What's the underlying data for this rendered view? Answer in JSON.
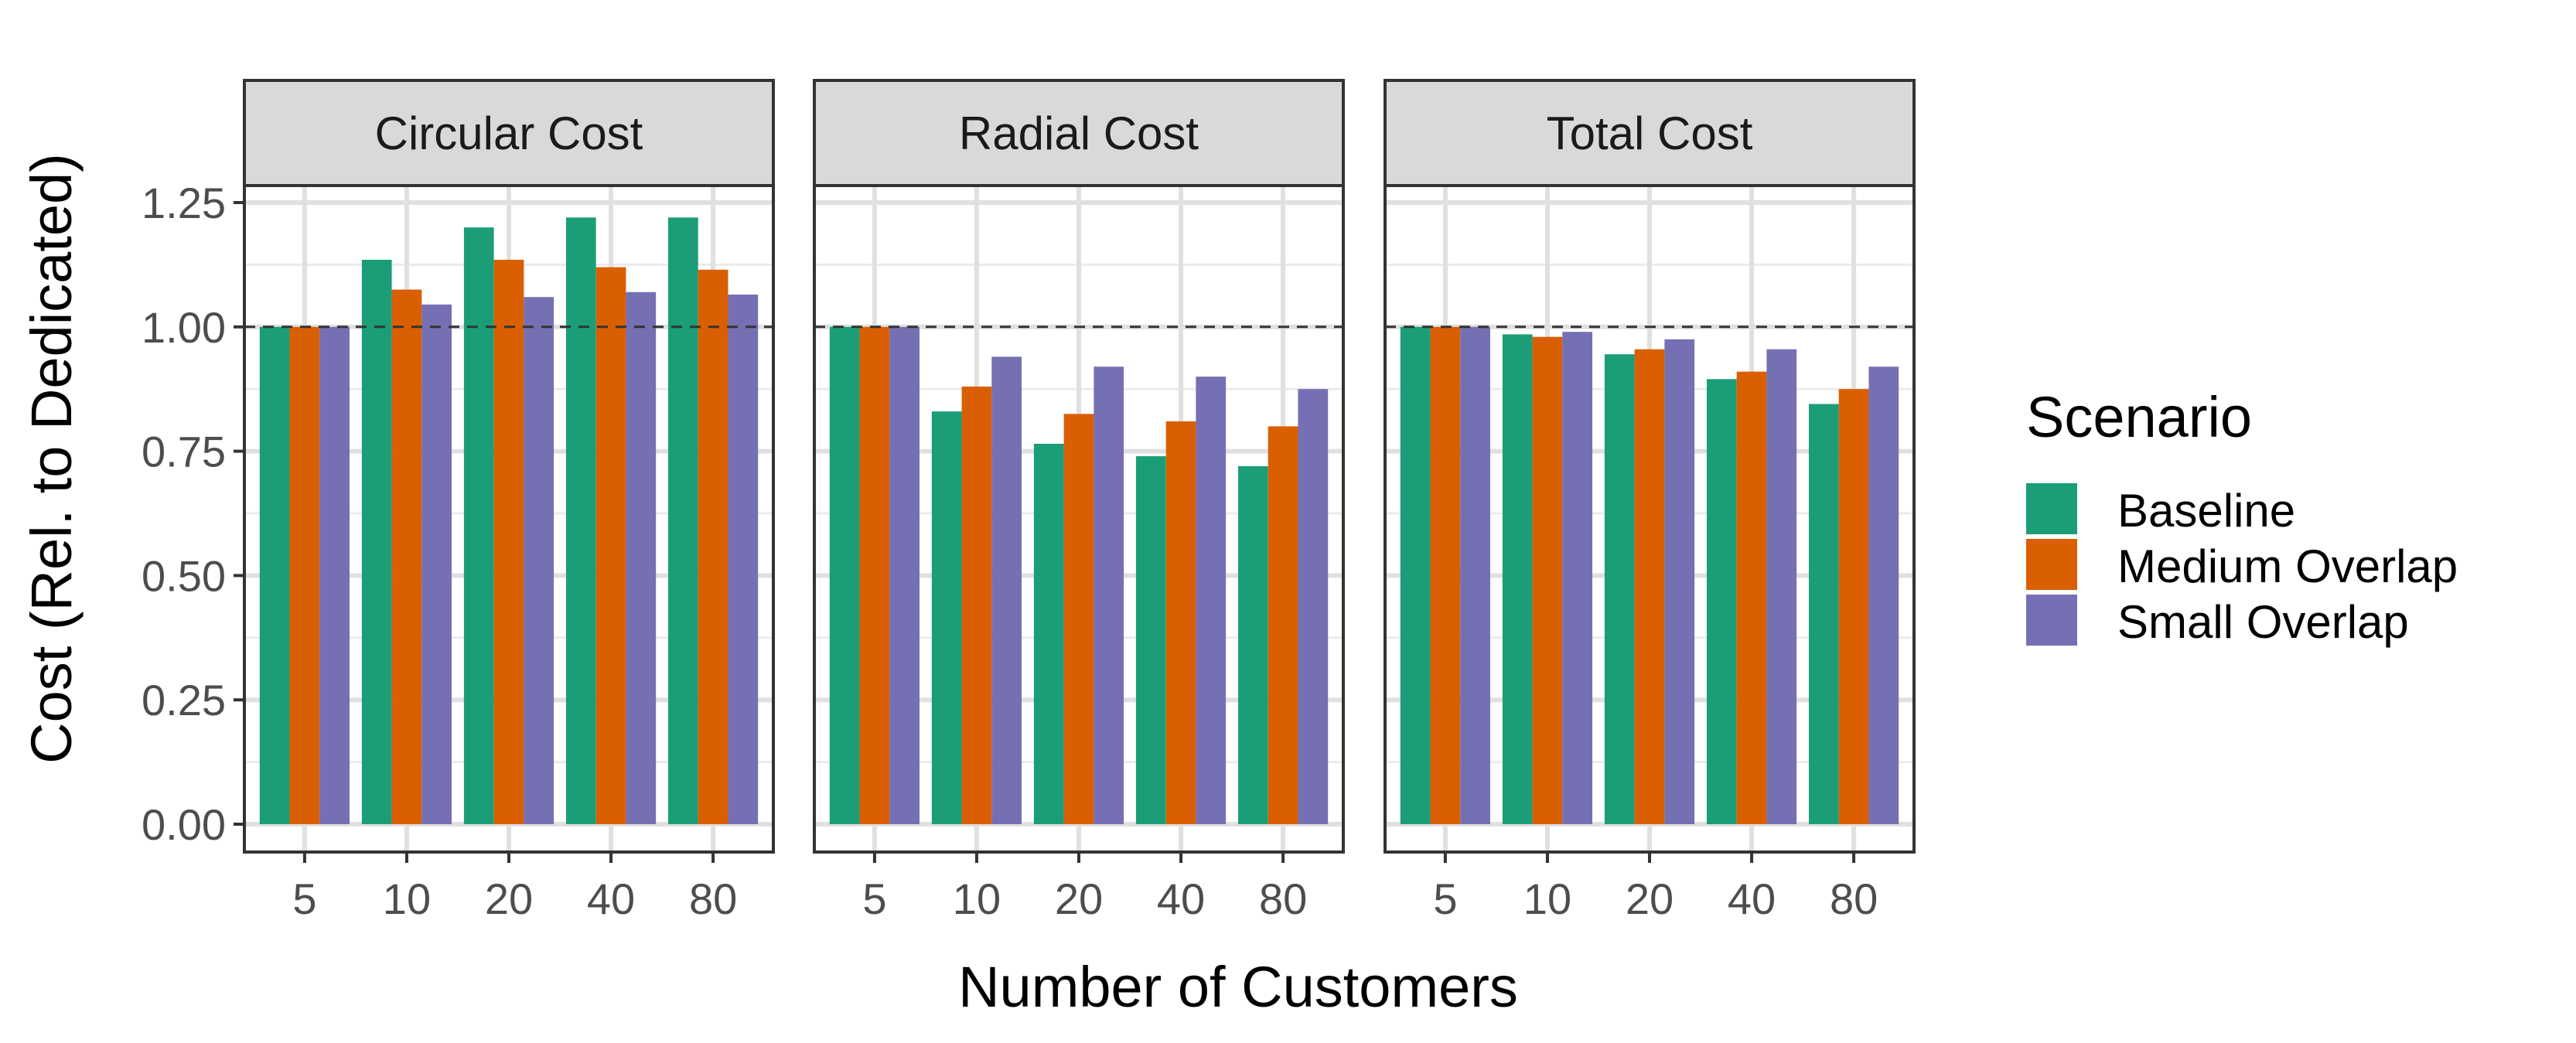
{
  "chart_data": {
    "type": "bar",
    "facets": [
      "Circular Cost",
      "Radial Cost",
      "Total Cost"
    ],
    "categories": [
      "5",
      "10",
      "20",
      "40",
      "80"
    ],
    "xlabel": "Number of Customers",
    "ylabel": "Cost (Rel. to Dedicated)",
    "ylim": [
      0,
      1.25
    ],
    "yticks": [
      "0.00",
      "0.25",
      "0.50",
      "0.75",
      "1.00",
      "1.25"
    ],
    "reference_line": 1.0,
    "grid": true,
    "legend_title": "Scenario",
    "legend_position": "right",
    "series": [
      {
        "name": "Baseline",
        "color": "#1b9e77",
        "values": {
          "Circular Cost": [
            1.0,
            1.135,
            1.2,
            1.22,
            1.22
          ],
          "Radial Cost": [
            1.0,
            0.83,
            0.765,
            0.74,
            0.72
          ],
          "Total Cost": [
            1.0,
            0.985,
            0.945,
            0.895,
            0.845
          ]
        }
      },
      {
        "name": "Medium Overlap",
        "color": "#d95f02",
        "values": {
          "Circular Cost": [
            1.0,
            1.075,
            1.135,
            1.12,
            1.115
          ],
          "Radial Cost": [
            1.0,
            0.88,
            0.825,
            0.81,
            0.8
          ],
          "Total Cost": [
            1.0,
            0.98,
            0.955,
            0.91,
            0.875
          ]
        }
      },
      {
        "name": "Small Overlap",
        "color": "#7570b3",
        "values": {
          "Circular Cost": [
            1.0,
            1.045,
            1.06,
            1.07,
            1.065
          ],
          "Radial Cost": [
            1.0,
            0.94,
            0.92,
            0.9,
            0.875
          ],
          "Total Cost": [
            1.0,
            0.99,
            0.975,
            0.955,
            0.92
          ]
        }
      }
    ]
  }
}
